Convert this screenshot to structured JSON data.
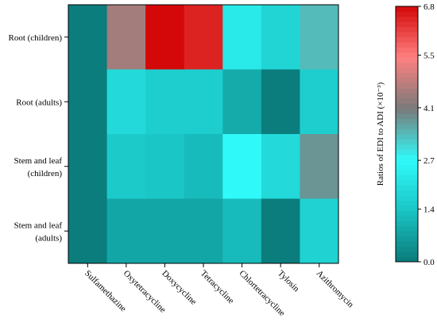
{
  "chart_data": {
    "type": "heatmap",
    "title": "",
    "xlabel": "",
    "ylabel": "",
    "x_categories": [
      "Sulfamethazine",
      "Oxytetracycline",
      "Doxycycline",
      "Tetracycline",
      "Chlortetracycline",
      "Tylosin",
      "Azithromycin"
    ],
    "y_categories": [
      [
        "Root (children)"
      ],
      [
        "Root (adults)"
      ],
      [
        "Stem and leaf",
        "(children)"
      ],
      [
        "Stem and leaf",
        "(adults)"
      ]
    ],
    "values": [
      [
        0.05,
        4.5,
        6.8,
        6.5,
        2.3,
        1.8,
        3.4
      ],
      [
        0.05,
        1.9,
        1.6,
        1.6,
        0.9,
        0.05,
        1.6
      ],
      [
        0.05,
        1.5,
        1.4,
        1.2,
        2.7,
        1.9,
        3.8
      ],
      [
        0.05,
        0.8,
        0.8,
        0.8,
        1.2,
        0.05,
        1.7
      ]
    ],
    "colorbar": {
      "label": "Ratios of EDI to ADI (×10⁻³)",
      "ticks": [
        0.0,
        1.4,
        2.7,
        4.1,
        5.5,
        6.8
      ],
      "tick_labels": [
        "0.0",
        "1.4",
        "2.7",
        "4.1",
        "5.5",
        "6.8"
      ],
      "range": [
        0,
        6.8
      ],
      "colors": [
        "#0a7a7a",
        "#1ac4c4",
        "#30fafa",
        "#7a7a7a",
        "#ff8080",
        "#d40808"
      ]
    }
  }
}
